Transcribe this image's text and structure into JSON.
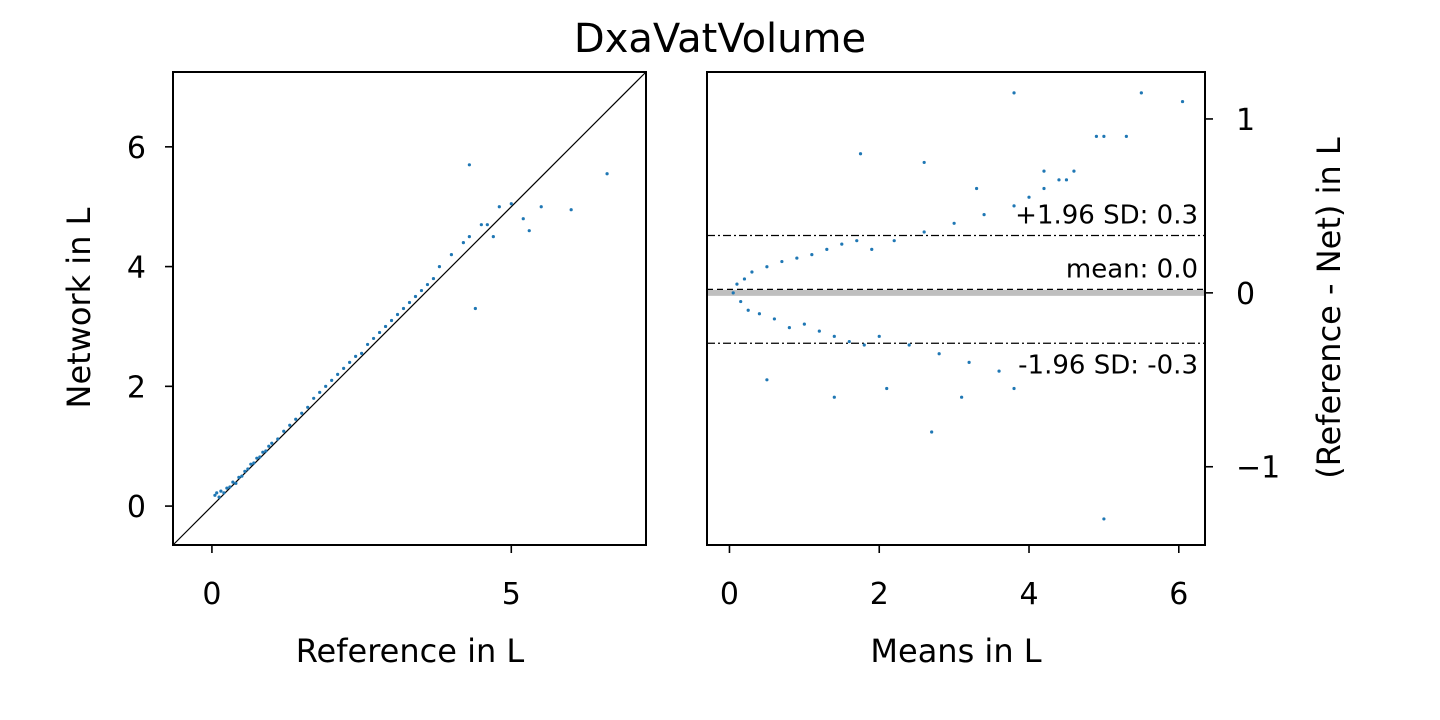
{
  "chart_data": [
    {
      "type": "scatter",
      "title": "DxaVatVolume",
      "xlabel": "Reference in L",
      "ylabel": "Network in L",
      "xlim": [
        -0.65,
        7.25
      ],
      "ylim": [
        -0.65,
        7.25
      ],
      "xticks": [
        "0",
        "5"
      ],
      "xtick_values": [
        0,
        5
      ],
      "yticks": [
        "0",
        "2",
        "4",
        "6"
      ],
      "ytick_values": [
        0,
        2,
        4,
        6
      ],
      "identity_line": true,
      "point_color": "#1f77b4",
      "series": [
        {
          "points": [
            [
              0.05,
              0.18
            ],
            [
              0.08,
              0.22
            ],
            [
              0.12,
              0.15
            ],
            [
              0.15,
              0.25
            ],
            [
              0.2,
              0.22
            ],
            [
              0.25,
              0.3
            ],
            [
              0.3,
              0.32
            ],
            [
              0.35,
              0.4
            ],
            [
              0.4,
              0.38
            ],
            [
              0.45,
              0.48
            ],
            [
              0.5,
              0.5
            ],
            [
              0.55,
              0.58
            ],
            [
              0.6,
              0.62
            ],
            [
              0.65,
              0.7
            ],
            [
              0.7,
              0.72
            ],
            [
              0.75,
              0.8
            ],
            [
              0.8,
              0.82
            ],
            [
              0.85,
              0.9
            ],
            [
              0.9,
              0.92
            ],
            [
              0.95,
              1.0
            ],
            [
              1.0,
              1.05
            ],
            [
              1.1,
              1.12
            ],
            [
              1.2,
              1.25
            ],
            [
              1.3,
              1.35
            ],
            [
              1.4,
              1.45
            ],
            [
              1.5,
              1.55
            ],
            [
              1.6,
              1.65
            ],
            [
              1.7,
              1.8
            ],
            [
              1.8,
              1.9
            ],
            [
              1.9,
              2.0
            ],
            [
              2.0,
              2.1
            ],
            [
              2.1,
              2.2
            ],
            [
              2.2,
              2.3
            ],
            [
              2.3,
              2.4
            ],
            [
              2.4,
              2.5
            ],
            [
              2.5,
              2.55
            ],
            [
              2.6,
              2.7
            ],
            [
              2.7,
              2.8
            ],
            [
              2.8,
              2.9
            ],
            [
              2.9,
              3.0
            ],
            [
              3.0,
              3.1
            ],
            [
              3.1,
              3.2
            ],
            [
              3.2,
              3.3
            ],
            [
              3.3,
              3.4
            ],
            [
              3.4,
              3.5
            ],
            [
              3.5,
              3.6
            ],
            [
              3.6,
              3.7
            ],
            [
              3.7,
              3.8
            ],
            [
              3.8,
              4.0
            ],
            [
              4.0,
              4.2
            ],
            [
              4.2,
              4.4
            ],
            [
              4.3,
              4.5
            ],
            [
              4.4,
              3.3
            ],
            [
              4.5,
              4.7
            ],
            [
              4.6,
              4.7
            ],
            [
              4.7,
              4.5
            ],
            [
              4.8,
              5.0
            ],
            [
              5.0,
              5.05
            ],
            [
              5.2,
              4.8
            ],
            [
              5.3,
              4.6
            ],
            [
              5.5,
              5.0
            ],
            [
              6.0,
              4.95
            ],
            [
              4.3,
              5.7
            ],
            [
              6.6,
              5.55
            ]
          ]
        }
      ]
    },
    {
      "type": "scatter",
      "title": "",
      "xlabel": "Means in L",
      "ylabel": "(Reference - Net) in L",
      "xlim": [
        -0.3,
        6.35
      ],
      "ylim": [
        -1.45,
        1.27
      ],
      "xticks": [
        "0",
        "2",
        "4",
        "6"
      ],
      "xtick_values": [
        0,
        2,
        4,
        6
      ],
      "yticks": [
        "1",
        "0",
        "−1"
      ],
      "ytick_values": [
        1,
        0,
        -1
      ],
      "y_axis_position": "right",
      "reference_lines": [
        {
          "label": "+1.96 SD: 0.3",
          "value": 0.33,
          "style": "dash-dot"
        },
        {
          "label": "mean: 0.0",
          "value": 0.02,
          "style": "dashed"
        },
        {
          "label": "-1.96 SD: -0.3",
          "value": -0.29,
          "style": "dash-dot"
        }
      ],
      "zero_band": {
        "value": 0,
        "color": "#bfbfbf"
      },
      "point_color": "#1f77b4",
      "series": [
        {
          "points": [
            [
              0.05,
              0.0
            ],
            [
              0.1,
              0.05
            ],
            [
              0.15,
              -0.05
            ],
            [
              0.2,
              0.08
            ],
            [
              0.25,
              -0.1
            ],
            [
              0.3,
              0.12
            ],
            [
              0.4,
              -0.12
            ],
            [
              0.5,
              0.15
            ],
            [
              0.6,
              -0.15
            ],
            [
              0.7,
              0.18
            ],
            [
              0.8,
              -0.2
            ],
            [
              0.9,
              0.2
            ],
            [
              1.0,
              -0.18
            ],
            [
              1.1,
              0.22
            ],
            [
              1.2,
              -0.22
            ],
            [
              1.3,
              0.25
            ],
            [
              1.4,
              -0.25
            ],
            [
              1.5,
              0.28
            ],
            [
              1.6,
              -0.28
            ],
            [
              1.7,
              0.3
            ],
            [
              1.8,
              -0.3
            ],
            [
              1.9,
              0.25
            ],
            [
              2.0,
              -0.25
            ],
            [
              2.2,
              0.3
            ],
            [
              2.4,
              -0.3
            ],
            [
              2.6,
              0.35
            ],
            [
              2.8,
              -0.35
            ],
            [
              3.0,
              0.4
            ],
            [
              3.2,
              -0.4
            ],
            [
              3.4,
              0.45
            ],
            [
              3.6,
              -0.45
            ],
            [
              3.8,
              0.5
            ],
            [
              4.0,
              0.55
            ],
            [
              4.2,
              0.6
            ],
            [
              4.4,
              0.65
            ],
            [
              4.6,
              0.7
            ],
            [
              1.75,
              0.8
            ],
            [
              2.6,
              0.75
            ],
            [
              3.8,
              1.15
            ],
            [
              5.5,
              1.15
            ],
            [
              6.05,
              1.1
            ],
            [
              4.9,
              0.9
            ],
            [
              5.0,
              0.9
            ],
            [
              5.3,
              0.9
            ],
            [
              4.2,
              0.7
            ],
            [
              2.7,
              -0.8
            ],
            [
              5.0,
              -1.3
            ],
            [
              3.8,
              -0.55
            ],
            [
              3.1,
              -0.6
            ],
            [
              0.5,
              -0.5
            ],
            [
              1.4,
              -0.6
            ],
            [
              2.1,
              -0.55
            ],
            [
              3.3,
              0.6
            ],
            [
              4.5,
              0.65
            ]
          ]
        }
      ]
    }
  ]
}
